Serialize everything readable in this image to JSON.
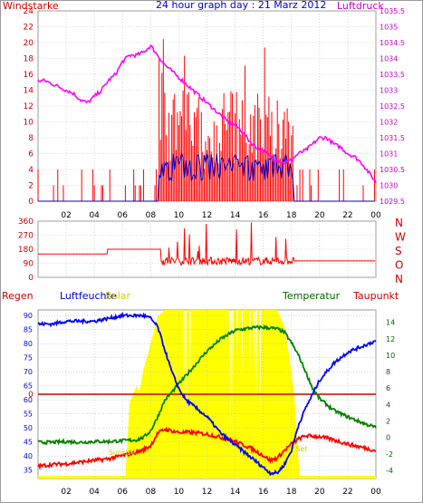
{
  "chart_data": [
    {
      "id": "wind_pressure",
      "type": "bar+line",
      "title": "24 hour graph day : 21 Marz 2012",
      "left_label": "Windstarke",
      "right_label": "Luftdruck",
      "x_ticks": [
        "02",
        "04",
        "06",
        "08",
        "10",
        "12",
        "14",
        "16",
        "18",
        "20",
        "22",
        "00"
      ],
      "y_left_ticks": [
        "0",
        "2",
        "4",
        "6",
        "8",
        "10",
        "12",
        "14",
        "16",
        "18",
        "20",
        "22",
        "24"
      ],
      "y_left_range": [
        0,
        24
      ],
      "y_right_ticks": [
        "1029.5",
        "1030",
        "1030.5",
        "1031",
        "1031.5",
        "1032",
        "1032.5",
        "1033",
        "1033.5",
        "1034",
        "1034.5",
        "1035",
        "1035.5"
      ],
      "y_right_range": [
        1029.5,
        1035.5
      ],
      "grid": true,
      "colors": {
        "gust": "#ff0000",
        "wind": "#0000cc",
        "pressure": "#ff00ff",
        "left_axis": "#cc0000",
        "right_axis": "#cc00cc",
        "title": "#0000cc"
      },
      "pressure": {
        "x": [
          0,
          0.5,
          1,
          1.5,
          2,
          2.5,
          3,
          3.5,
          4,
          4.5,
          5,
          5.5,
          6,
          6.5,
          7,
          7.5,
          8,
          8.5,
          9,
          9.5,
          10,
          10.5,
          11,
          11.5,
          12,
          12.5,
          13,
          13.5,
          14,
          14.5,
          15,
          15.5,
          16,
          16.5,
          17,
          17.5,
          18,
          18.5,
          19,
          19.5,
          20,
          20.5,
          21,
          21.5,
          22,
          22.5,
          23,
          23.5,
          24
        ],
        "y": [
          1033.3,
          1033.3,
          1033.2,
          1033.1,
          1033.0,
          1032.9,
          1032.7,
          1032.6,
          1032.8,
          1033.0,
          1033.3,
          1033.5,
          1033.9,
          1034.1,
          1034.1,
          1034.2,
          1034.4,
          1034.1,
          1033.8,
          1033.6,
          1033.4,
          1033.2,
          1033.0,
          1032.8,
          1032.6,
          1032.4,
          1032.2,
          1032.0,
          1031.9,
          1031.7,
          1031.4,
          1031.2,
          1031.1,
          1030.9,
          1030.8,
          1030.7,
          1030.8,
          1031.0,
          1031.1,
          1031.3,
          1031.5,
          1031.5,
          1031.3,
          1031.2,
          1031.0,
          1030.9,
          1030.7,
          1030.4,
          1030.1
        ]
      }
    },
    {
      "id": "wind_direction",
      "type": "line",
      "x_ticks": [
        "02",
        "04",
        "06",
        "08",
        "10",
        "12",
        "14",
        "16",
        "18",
        "20",
        "22",
        "00"
      ],
      "y_left_ticks": [
        "0",
        "90",
        "180",
        "270",
        "360"
      ],
      "y_range": [
        0,
        360
      ],
      "y_right_labels": [
        "N",
        "W",
        "S",
        "O",
        "N"
      ],
      "colors": {
        "line": "#ff0000",
        "axis": "#cc0000"
      },
      "direction": {
        "x": [
          0,
          1,
          2,
          3,
          4,
          4.9,
          5,
          6,
          7,
          8,
          8.9,
          9.0,
          24
        ],
        "y": [
          150,
          150,
          150,
          150,
          150,
          150,
          180,
          180,
          180,
          180,
          180,
          108,
          108
        ]
      }
    },
    {
      "id": "rain_humidity_temp",
      "type": "line+area",
      "labels": {
        "rain": "Regen",
        "humidity": "Luftfeuchte",
        "solar": "Solar",
        "temperature": "Temperatur",
        "dewpoint": "Taupunkt",
        "sunrise": "Sunrise",
        "sunset": "Set"
      },
      "rain_marker": "0",
      "x_ticks": [
        "02",
        "04",
        "06",
        "08",
        "10",
        "12",
        "14",
        "16",
        "18",
        "20",
        "22",
        "00"
      ],
      "y_left_ticks": [
        "35",
        "40",
        "45",
        "50",
        "55",
        "60",
        "65",
        "70",
        "75",
        "80",
        "85",
        "90"
      ],
      "y_left_range": [
        32,
        92
      ],
      "y_right_ticks": [
        "-4",
        "-2",
        "0",
        "2",
        "4",
        "6",
        "8",
        "10",
        "12",
        "14"
      ],
      "y_right_range": [
        -5,
        15.5
      ],
      "colors": {
        "humidity": "#0000ff",
        "temperature": "#008000",
        "dewpoint": "#ff0000",
        "solar": "#ffff00",
        "rain": "#cc0000",
        "label_blue": "#0000cc",
        "label_green": "#006600",
        "label_solar": "#cccc00",
        "zero": "#cc0000"
      },
      "humidity": {
        "x": [
          0,
          1,
          2,
          3,
          4,
          5,
          6,
          7,
          7.5,
          8,
          8.5,
          9,
          9.5,
          10,
          10.5,
          11,
          12,
          13,
          14,
          15,
          15.5,
          16,
          16.5,
          17,
          17.5,
          18,
          18.5,
          19,
          19.5,
          20,
          21,
          22,
          23,
          24
        ],
        "y": [
          87,
          87,
          88,
          88,
          88,
          89,
          90,
          90,
          90,
          89,
          86,
          78,
          70,
          64,
          60,
          58,
          54,
          48,
          44,
          40,
          38,
          36,
          34,
          34,
          37,
          42,
          51,
          57,
          62,
          67,
          73,
          77,
          79,
          81
        ]
      },
      "temperature": {
        "x": [
          0,
          1,
          2,
          3,
          4,
          5,
          6,
          7,
          7.5,
          8,
          8.5,
          9,
          9.5,
          10,
          11,
          12,
          13,
          14,
          15,
          16,
          17,
          17.5,
          18,
          18.5,
          19,
          19.5,
          20,
          20.5,
          21,
          22,
          23,
          24
        ],
        "y": [
          -0.6,
          -0.6,
          -0.5,
          -0.6,
          -0.5,
          -0.5,
          -0.4,
          -0.3,
          0.0,
          0.8,
          2.5,
          4.5,
          5.5,
          6.5,
          8.5,
          10.5,
          12.0,
          13.0,
          13.3,
          13.4,
          13.2,
          12.8,
          11.5,
          10.0,
          8.0,
          6.0,
          4.7,
          4.0,
          3.3,
          2.5,
          1.8,
          1.2
        ]
      },
      "dewpoint": {
        "x": [
          0,
          1,
          2,
          3,
          4,
          5,
          6,
          7,
          7.5,
          8,
          8.5,
          9,
          10,
          11,
          12,
          13,
          14,
          15,
          16,
          16.5,
          17,
          17.5,
          18,
          18.5,
          19,
          20,
          21,
          22,
          23,
          24
        ],
        "y": [
          -3.5,
          -3.3,
          -3.2,
          -3.0,
          -2.8,
          -2.6,
          -2.2,
          -1.8,
          -1.5,
          -1.0,
          0.5,
          1.0,
          0.6,
          0.6,
          0.4,
          0.0,
          -0.5,
          -1.2,
          -2.2,
          -2.8,
          -2.5,
          -1.6,
          -0.8,
          -0.2,
          0.2,
          0.1,
          -0.3,
          -0.8,
          -1.2,
          -1.6
        ]
      },
      "solar": {
        "x": [
          6.2,
          6.5,
          7.0,
          7.2,
          7.5,
          8,
          8.5,
          9,
          10,
          11,
          12,
          13,
          14,
          15,
          16,
          17,
          17.5,
          17.8,
          18.2,
          18.4,
          18.6
        ],
        "y": [
          0.0,
          0.45,
          0.55,
          0.52,
          0.65,
          0.8,
          0.96,
          1,
          1,
          1,
          1,
          1,
          1,
          1,
          1,
          1,
          0.9,
          0.75,
          0.5,
          0.25,
          0.0
        ]
      }
    }
  ]
}
